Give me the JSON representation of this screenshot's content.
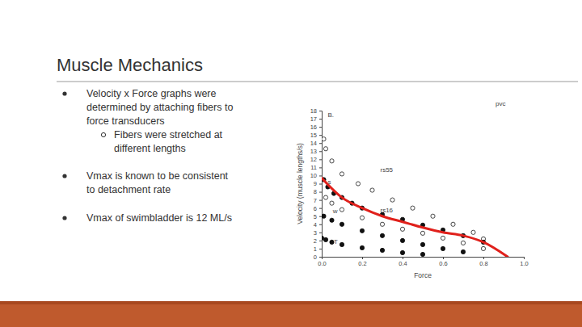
{
  "slide": {
    "title": "Muscle Mechanics",
    "bullets": [
      {
        "lines": [
          "Velocity x Force graphs were",
          "determined by attaching fibers to",
          "force transducers"
        ],
        "sub": [
          {
            "lines": [
              "Fibers were stretched at",
              "different lengths"
            ]
          }
        ]
      },
      {
        "lines": [
          "Vmax is known to be consistent",
          "to detachment rate"
        ]
      },
      {
        "lines": [
          "Vmax of swimbladder is 12 ML/s"
        ]
      }
    ]
  },
  "chart_data": {
    "type": "scatter",
    "x_label": "Force",
    "y_label": "Velocity (muscle lengths/s)",
    "xlim": [
      0,
      1.0
    ],
    "ylim": [
      0,
      18
    ],
    "xticks": [
      {
        "value": 0,
        "label": "0.0"
      },
      0.2,
      0.4,
      0.6,
      0.8,
      {
        "value": 1.0,
        "label": "1.0"
      }
    ],
    "yticks": [
      0,
      1,
      2,
      3,
      4,
      5,
      6,
      7,
      8,
      9,
      10,
      11,
      12,
      13,
      14,
      15,
      16,
      17,
      18
    ],
    "grid": false,
    "annotations": [
      {
        "text": "B.",
        "x": 0.03,
        "y": 17.2
      },
      {
        "text": "pvc",
        "x": 0.86,
        "y": 18.6
      },
      {
        "text": "rs55",
        "x": 0.29,
        "y": 10.4
      },
      {
        "text": "rs16",
        "x": 0.29,
        "y": 5.5
      },
      {
        "text": "s",
        "x": 0.03,
        "y": 9.0
      },
      {
        "text": "w",
        "x": 0.055,
        "y": 5.4
      },
      {
        "text": "T",
        "x": 0.06,
        "y": 1.6
      }
    ],
    "series": [
      {
        "color": "#333333",
        "marker": "open-circle",
        "x": [
          0.01,
          0.02,
          0.05,
          0.1,
          0.18,
          0.25,
          0.35,
          0.45,
          0.55,
          0.65,
          0.75,
          0.8
        ],
        "values": [
          14.5,
          13.3,
          11.8,
          10.2,
          9.0,
          8.2,
          7.0,
          6.0,
          5.0,
          4.0,
          3.0,
          2.2
        ]
      },
      {
        "color": "#111111",
        "marker": "filled-circle",
        "x": [
          0.01,
          0.03,
          0.06,
          0.1,
          0.15,
          0.2,
          0.3,
          0.4,
          0.5,
          0.6,
          0.7,
          0.8
        ],
        "values": [
          9.5,
          8.6,
          7.8,
          7.3,
          6.6,
          6.0,
          5.2,
          4.6,
          3.9,
          3.3,
          2.6,
          1.8
        ]
      },
      {
        "color": "#333333",
        "marker": "open-circle",
        "x": [
          0.02,
          0.05,
          0.1,
          0.2,
          0.3,
          0.4,
          0.5,
          0.6,
          0.7,
          0.8
        ],
        "values": [
          7.3,
          6.6,
          5.8,
          4.8,
          4.0,
          3.4,
          2.9,
          2.3,
          1.7,
          1.0
        ]
      },
      {
        "color": "#111111",
        "marker": "filled-circle",
        "x": [
          0.01,
          0.05,
          0.1,
          0.2,
          0.3,
          0.4,
          0.5,
          0.6,
          0.7
        ],
        "values": [
          5.0,
          4.5,
          4.0,
          3.2,
          2.6,
          2.0,
          1.5,
          1.0,
          0.6
        ]
      },
      {
        "color": "#111111",
        "marker": "filled-circle",
        "x": [
          0.0,
          0.02,
          0.05,
          0.1,
          0.2,
          0.3,
          0.4,
          0.5
        ],
        "values": [
          2.3,
          2.1,
          1.8,
          1.5,
          1.1,
          0.8,
          0.5,
          0.3
        ]
      },
      {
        "type": "line",
        "color": "#e0201b",
        "marker": "none",
        "line_style": "solid",
        "x": [
          0.0,
          0.1,
          0.2,
          0.3,
          0.4,
          0.5,
          0.6,
          0.7,
          0.8,
          0.92
        ],
        "values": [
          9.7,
          7.3,
          6.0,
          5.0,
          4.3,
          3.6,
          3.0,
          2.6,
          1.8,
          0.0
        ]
      }
    ]
  }
}
